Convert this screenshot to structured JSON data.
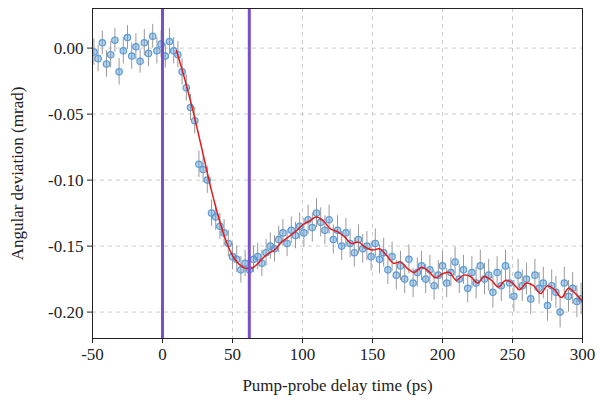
{
  "chart_data": {
    "type": "scatter",
    "x_label": "Pump-probe delay time (ps)",
    "y_label": "Angular deviation (mrad)",
    "xlim": [
      -50,
      300
    ],
    "xticks": [
      -50,
      0,
      50,
      100,
      150,
      200,
      250,
      300
    ],
    "ylim": [
      -0.22,
      0.03
    ],
    "yticks": [
      {
        "value": 0,
        "label": "0.00"
      },
      {
        "value": -0.05,
        "label": "-0.05"
      },
      {
        "value": -0.1,
        "label": "-0.10"
      },
      {
        "value": -0.15,
        "label": "-0.15"
      },
      {
        "value": -0.2,
        "label": "-0.20"
      }
    ],
    "grid": true,
    "series": [
      {
        "type": "scatter",
        "marker": "circle",
        "color": "#5b9bd5",
        "x": [
          -49,
          -46,
          -43,
          -40,
          -37,
          -34,
          -31,
          -28,
          -25,
          -22,
          -19,
          -16,
          -13,
          -10,
          -7,
          -4,
          -1,
          2,
          5,
          8,
          11,
          14,
          17,
          20,
          23,
          26,
          29,
          32,
          35,
          38,
          41,
          44,
          47,
          50,
          53,
          56,
          59,
          62,
          65,
          68,
          71,
          74,
          77,
          80,
          83,
          86,
          89,
          92,
          95,
          98,
          101,
          104,
          107,
          110,
          113,
          116,
          119,
          122,
          125,
          128,
          131,
          134,
          137,
          140,
          143,
          146,
          149,
          152,
          155,
          158,
          161,
          164,
          167,
          170,
          173,
          176,
          179,
          182,
          185,
          188,
          191,
          194,
          197,
          200,
          203,
          206,
          209,
          212,
          215,
          218,
          221,
          224,
          227,
          230,
          233,
          236,
          239,
          242,
          245,
          248,
          251,
          254,
          257,
          260,
          263,
          266,
          269,
          272,
          275,
          278,
          281,
          284,
          287,
          290,
          293,
          296,
          299
        ],
        "values": [
          -0.003,
          -0.008,
          0.004,
          -0.012,
          -0.005,
          0.006,
          -0.018,
          -0.002,
          0.008,
          -0.006,
          0.001,
          -0.01,
          0.004,
          -0.004,
          0.009,
          -0.002,
          0.003,
          -0.006,
          0.005,
          -0.002,
          -0.005,
          -0.018,
          -0.03,
          -0.045,
          -0.055,
          -0.088,
          -0.092,
          -0.1,
          -0.125,
          -0.128,
          -0.135,
          -0.14,
          -0.148,
          -0.158,
          -0.16,
          -0.168,
          -0.163,
          -0.168,
          -0.16,
          -0.158,
          -0.163,
          -0.155,
          -0.15,
          -0.152,
          -0.145,
          -0.14,
          -0.148,
          -0.138,
          -0.142,
          -0.135,
          -0.14,
          -0.13,
          -0.136,
          -0.125,
          -0.132,
          -0.138,
          -0.13,
          -0.145,
          -0.138,
          -0.15,
          -0.14,
          -0.148,
          -0.155,
          -0.145,
          -0.152,
          -0.15,
          -0.158,
          -0.148,
          -0.16,
          -0.155,
          -0.168,
          -0.158,
          -0.172,
          -0.165,
          -0.175,
          -0.16,
          -0.178,
          -0.17,
          -0.165,
          -0.175,
          -0.168,
          -0.18,
          -0.172,
          -0.165,
          -0.178,
          -0.17,
          -0.162,
          -0.175,
          -0.168,
          -0.182,
          -0.17,
          -0.178,
          -0.165,
          -0.175,
          -0.172,
          -0.185,
          -0.17,
          -0.18,
          -0.165,
          -0.178,
          -0.188,
          -0.172,
          -0.18,
          -0.175,
          -0.19,
          -0.172,
          -0.182,
          -0.178,
          -0.195,
          -0.18,
          -0.185,
          -0.2,
          -0.178,
          -0.188,
          -0.182,
          -0.192,
          -0.19
        ],
        "errors": [
          0.01,
          0.01,
          0.009,
          0.01,
          0.01,
          0.009,
          0.01,
          0.01,
          0.009,
          0.01,
          0.01,
          0.009,
          0.01,
          0.01,
          0.009,
          0.01,
          0.01,
          0.009,
          0.01,
          0.01,
          0.01,
          0.01,
          0.01,
          0.01,
          0.01,
          0.01,
          0.01,
          0.01,
          0.01,
          0.01,
          0.01,
          0.01,
          0.01,
          0.01,
          0.01,
          0.01,
          0.01,
          0.01,
          0.01,
          0.01,
          0.01,
          0.01,
          0.01,
          0.01,
          0.01,
          0.01,
          0.01,
          0.01,
          0.01,
          0.01,
          0.011,
          0.011,
          0.011,
          0.011,
          0.011,
          0.011,
          0.011,
          0.011,
          0.011,
          0.011,
          0.011,
          0.011,
          0.011,
          0.011,
          0.011,
          0.011,
          0.011,
          0.011,
          0.011,
          0.011,
          0.011,
          0.011,
          0.011,
          0.011,
          0.011,
          0.011,
          0.011,
          0.011,
          0.011,
          0.011,
          0.011,
          0.011,
          0.011,
          0.011,
          0.011,
          0.011,
          0.011,
          0.011,
          0.011,
          0.011,
          0.012,
          0.012,
          0.012,
          0.012,
          0.012,
          0.012,
          0.012,
          0.012,
          0.012,
          0.012,
          0.012,
          0.012,
          0.012,
          0.012,
          0.012,
          0.012,
          0.012,
          0.012,
          0.012,
          0.012,
          0.012,
          0.012,
          0.012,
          0.012,
          0.012,
          0.012,
          0.012
        ]
      },
      {
        "type": "line",
        "line_style": "solid",
        "color": "#e41a1c",
        "x": [
          10,
          15,
          20,
          25,
          30,
          35,
          40,
          45,
          50,
          55,
          60,
          65,
          70,
          75,
          80,
          85,
          90,
          95,
          100,
          105,
          110,
          115,
          120,
          125,
          130,
          135,
          140,
          145,
          150,
          155,
          160,
          165,
          170,
          175,
          180,
          185,
          190,
          195,
          200,
          205,
          210,
          215,
          220,
          225,
          230,
          235,
          240,
          245,
          250,
          255,
          260,
          265,
          270,
          275,
          280,
          285,
          290,
          295,
          300
        ],
        "values": [
          -0.002,
          -0.02,
          -0.04,
          -0.062,
          -0.085,
          -0.108,
          -0.128,
          -0.145,
          -0.157,
          -0.164,
          -0.167,
          -0.166,
          -0.161,
          -0.156,
          -0.153,
          -0.147,
          -0.143,
          -0.139,
          -0.134,
          -0.131,
          -0.128,
          -0.131,
          -0.137,
          -0.139,
          -0.143,
          -0.148,
          -0.147,
          -0.151,
          -0.153,
          -0.152,
          -0.157,
          -0.163,
          -0.162,
          -0.167,
          -0.17,
          -0.166,
          -0.169,
          -0.174,
          -0.171,
          -0.17,
          -0.176,
          -0.172,
          -0.173,
          -0.178,
          -0.173,
          -0.176,
          -0.181,
          -0.176,
          -0.178,
          -0.183,
          -0.178,
          -0.18,
          -0.186,
          -0.18,
          -0.183,
          -0.189,
          -0.182,
          -0.186,
          -0.192
        ]
      },
      {
        "type": "vline",
        "color": "#7b4fc9",
        "x": [
          0,
          62
        ]
      }
    ]
  }
}
